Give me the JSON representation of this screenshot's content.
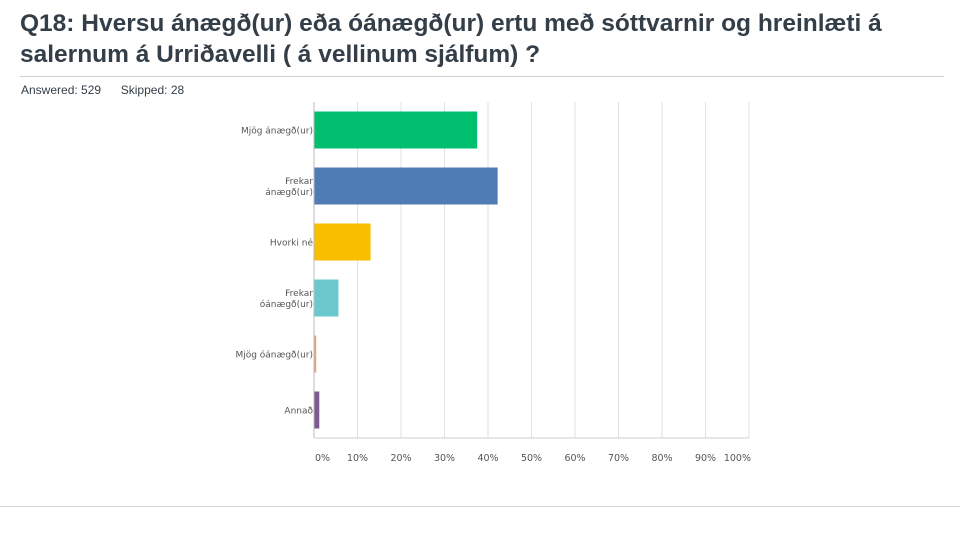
{
  "question": {
    "title": "Q18: Hversu ánægð(ur) eða óánægð(ur) ertu með sóttvarnir og hreinlæti á salernum á Urriðavelli ( á vellinum sjálfum) ?"
  },
  "stats": {
    "answered_label": "Answered:",
    "answered_value": "529",
    "skipped_label": "Skipped:",
    "skipped_value": "28"
  },
  "chart_data": {
    "type": "bar",
    "orientation": "horizontal",
    "categories": [
      [
        "Mjög ánægð(ur)"
      ],
      [
        "Frekar",
        "ánægð(ur)"
      ],
      [
        "Hvorki né"
      ],
      [
        "Frekar",
        "óánægð(ur)"
      ],
      [
        "Mjög óánægð(ur)"
      ],
      [
        "Annað"
      ]
    ],
    "values": [
      37.4,
      42.1,
      12.9,
      5.5,
      0.4,
      1.1
    ],
    "colors": [
      "#00bf6f",
      "#507cb6",
      "#f9be00",
      "#6bc8cd",
      "#f19e77",
      "#7d5b8e"
    ],
    "xlim": [
      0,
      100
    ],
    "xticks": [
      "0%",
      "10%",
      "20%",
      "30%",
      "40%",
      "50%",
      "60%",
      "70%",
      "80%",
      "90%",
      "100%"
    ],
    "grid": true,
    "legend": "none"
  }
}
